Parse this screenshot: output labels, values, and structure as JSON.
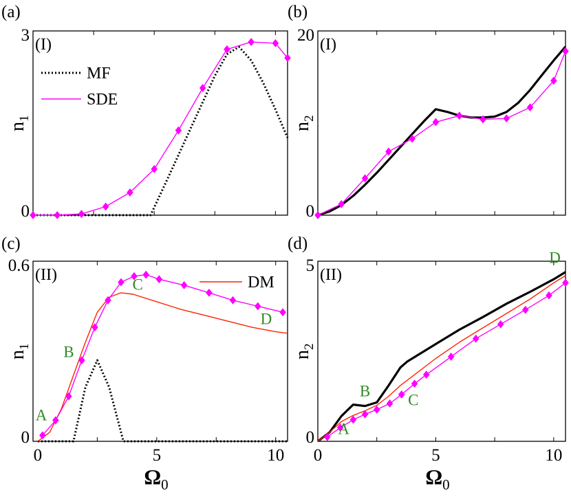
{
  "figure": {
    "layout": "2x2 grid"
  },
  "chart_data": [
    {
      "panel_label": "(a)",
      "regime": "(I)",
      "type": "line",
      "ylabel_main": "n",
      "ylabel_sub": "1",
      "xlim": [
        0,
        10.5
      ],
      "ylim": [
        0,
        3
      ],
      "xticks": [],
      "yticks": [
        0,
        3
      ],
      "ytick_labels": [
        "0",
        "3"
      ],
      "xlabel_main": "",
      "xlabel_sub": "",
      "legend": [
        {
          "name": "MF",
          "style": "dotted",
          "color": "#000000"
        },
        {
          "name": "SDE",
          "style": "solid-marker",
          "color": "#ff00ff"
        }
      ],
      "series": [
        {
          "name": "MF",
          "style": "dotted",
          "color": "#000000",
          "x": [
            0.0,
            1,
            2,
            3,
            4,
            4.85,
            5.5,
            6,
            6.5,
            7,
            7.5,
            8.0,
            8.5,
            9.0,
            9.5,
            10.0,
            10.5
          ],
          "y": [
            0,
            0,
            0,
            0,
            0,
            0,
            0.55,
            0.98,
            1.41,
            1.84,
            2.27,
            2.62,
            2.74,
            2.52,
            2.15,
            1.72,
            1.26
          ]
        },
        {
          "name": "SDE",
          "style": "solid-marker",
          "color": "#ff00ff",
          "x": [
            0.0,
            1.0,
            2.0,
            3.0,
            4.0,
            5.0,
            6.0,
            7.0,
            8.0,
            9.0,
            10.0,
            10.5
          ],
          "y": [
            0.0,
            0.0,
            0.02,
            0.14,
            0.37,
            0.75,
            1.38,
            2.07,
            2.7,
            2.82,
            2.8,
            2.56
          ]
        }
      ],
      "annotations": []
    },
    {
      "panel_label": "(b)",
      "regime": "(I)",
      "type": "line",
      "ylabel_main": "n",
      "ylabel_sub": "2",
      "xlim": [
        0,
        10.5
      ],
      "ylim": [
        0,
        20
      ],
      "xticks": [],
      "yticks": [
        0,
        20
      ],
      "ytick_labels": [
        "0",
        "20"
      ],
      "xlabel_main": "",
      "xlabel_sub": "",
      "legend": [],
      "series": [
        {
          "name": "MF",
          "style": "solid-thick",
          "color": "#000000",
          "x": [
            0,
            0.5,
            1,
            1.5,
            2,
            2.5,
            3,
            3.5,
            4,
            4.5,
            5,
            5.5,
            6,
            6.5,
            7,
            7.5,
            8,
            8.5,
            9,
            9.5,
            10,
            10.5
          ],
          "y": [
            0,
            0.4,
            1.1,
            2.1,
            3.3,
            4.6,
            6.0,
            7.4,
            8.8,
            10.2,
            11.5,
            11.2,
            10.8,
            10.6,
            10.6,
            10.7,
            11.2,
            12.2,
            13.6,
            15.2,
            16.8,
            18.3
          ]
        },
        {
          "name": "SDE",
          "style": "solid-marker",
          "color": "#ff00ff",
          "x": [
            0.0,
            1.0,
            2.0,
            3.0,
            4.0,
            5.0,
            6.0,
            7.0,
            8.0,
            9.0,
            10.0,
            10.5
          ],
          "y": [
            0.0,
            1.2,
            4.0,
            6.9,
            8.3,
            10.1,
            10.8,
            10.4,
            10.5,
            11.7,
            14.6,
            17.8
          ]
        }
      ],
      "annotations": []
    },
    {
      "panel_label": "(c)",
      "regime": "(II)",
      "type": "line",
      "ylabel_main": "n",
      "ylabel_sub": "1",
      "xlim": [
        -0.2,
        10.5
      ],
      "ylim": [
        0,
        0.6
      ],
      "xticks": [
        0,
        5,
        10
      ],
      "yticks": [
        0,
        0.6
      ],
      "ytick_labels": [
        "0",
        "0.6"
      ],
      "xlabel_main": "Ω",
      "xlabel_sub": "0",
      "legend": [
        {
          "name": "DM",
          "style": "solid",
          "color": "#ff2200"
        }
      ],
      "series": [
        {
          "name": "MF",
          "style": "dotted",
          "color": "#000000",
          "x": [
            0,
            1.5,
            2.0,
            2.5,
            3.0,
            3.6,
            4.0,
            10.5
          ],
          "y": [
            0,
            0,
            0.18,
            0.27,
            0.18,
            0,
            0,
            0
          ]
        },
        {
          "name": "DM",
          "style": "solid",
          "color": "#ff2200",
          "x": [
            0,
            0.5,
            1,
            1.5,
            2,
            2.5,
            3,
            3.5,
            4,
            5,
            6,
            7,
            8,
            9,
            10,
            10.5
          ],
          "y": [
            0,
            0.03,
            0.11,
            0.22,
            0.33,
            0.43,
            0.48,
            0.495,
            0.49,
            0.465,
            0.44,
            0.42,
            0.4,
            0.38,
            0.365,
            0.36
          ]
        },
        {
          "name": "SDE",
          "style": "solid-marker",
          "color": "#ff00ff",
          "x": [
            0.2,
            0.75,
            1.3,
            1.85,
            2.4,
            2.95,
            3.5,
            4.05,
            4.55,
            5.1,
            6.15,
            7.2,
            8.2,
            9.25,
            10.3
          ],
          "y": [
            0.02,
            0.07,
            0.15,
            0.27,
            0.38,
            0.47,
            0.53,
            0.55,
            0.555,
            0.54,
            0.52,
            0.495,
            0.47,
            0.45,
            0.43
          ]
        }
      ],
      "annotations": [
        {
          "text": "A",
          "x": 0.15,
          "y": 0.07,
          "color": "#2e8b22"
        },
        {
          "text": "B",
          "x": 1.3,
          "y": 0.28,
          "color": "#2e8b22"
        },
        {
          "text": "C",
          "x": 4.2,
          "y": 0.505,
          "color": "#2e8b22"
        },
        {
          "text": "D",
          "x": 9.6,
          "y": 0.39,
          "color": "#2e8b22"
        }
      ]
    },
    {
      "panel_label": "(d)",
      "regime": "(II)",
      "type": "line",
      "ylabel_main": "n",
      "ylabel_sub": "2",
      "xlim": [
        0,
        10.5
      ],
      "ylim": [
        0,
        5
      ],
      "xticks": [
        0,
        5,
        10
      ],
      "yticks": [
        0,
        5
      ],
      "ytick_labels": [
        "0",
        "5"
      ],
      "xlabel_main": "Ω",
      "xlabel_sub": "0",
      "legend": [],
      "series": [
        {
          "name": "MF",
          "style": "solid-thick",
          "color": "#000000",
          "x": [
            0,
            0.5,
            1.0,
            1.5,
            2.0,
            2.5,
            3.0,
            3.5,
            3.8,
            4.5,
            5,
            6,
            7,
            8,
            9,
            10,
            10.5
          ],
          "y": [
            0,
            0.25,
            0.7,
            1.02,
            0.98,
            1.08,
            1.55,
            2.05,
            2.22,
            2.5,
            2.7,
            3.1,
            3.45,
            3.82,
            4.15,
            4.5,
            4.7
          ]
        },
        {
          "name": "DM",
          "style": "solid",
          "color": "#ff2200",
          "x": [
            0,
            0.5,
            1,
            1.5,
            2,
            2.5,
            3,
            3.5,
            4,
            5,
            6,
            7,
            8,
            9,
            10,
            10.5
          ],
          "y": [
            0,
            0.25,
            0.55,
            0.72,
            0.85,
            1.0,
            1.25,
            1.55,
            1.8,
            2.3,
            2.75,
            3.15,
            3.55,
            3.95,
            4.4,
            4.6
          ]
        },
        {
          "name": "SDE",
          "style": "solid-marker",
          "color": "#ff00ff",
          "x": [
            0.4,
            0.95,
            1.5,
            2.0,
            2.5,
            3.05,
            3.55,
            4.1,
            4.6,
            5.65,
            6.7,
            7.75,
            8.8,
            9.8,
            10.5
          ],
          "y": [
            0.12,
            0.38,
            0.6,
            0.75,
            0.88,
            1.05,
            1.3,
            1.6,
            1.85,
            2.35,
            2.85,
            3.25,
            3.65,
            4.05,
            4.4
          ]
        }
      ],
      "annotations": [
        {
          "text": "A",
          "x": 1.1,
          "y": 0.2,
          "color": "#2e8b22"
        },
        {
          "text": "B",
          "x": 2.0,
          "y": 1.25,
          "color": "#2e8b22"
        },
        {
          "text": "C",
          "x": 4.05,
          "y": 1.0,
          "color": "#2e8b22"
        },
        {
          "text": "D",
          "x": 10.05,
          "y": 4.95,
          "color": "#2e8b22"
        }
      ]
    }
  ]
}
